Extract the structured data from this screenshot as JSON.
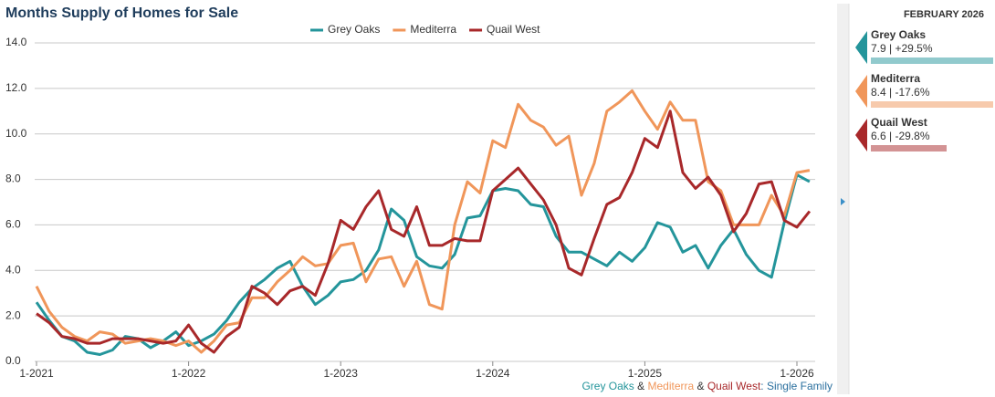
{
  "chart_data": {
    "type": "line",
    "title": "Months Supply of Homes for Sale",
    "categories": [
      "1-2021",
      null,
      null,
      null,
      null,
      null,
      null,
      null,
      null,
      null,
      null,
      null,
      "1-2022",
      null,
      null,
      null,
      null,
      null,
      null,
      null,
      null,
      null,
      null,
      null,
      "1-2023",
      null,
      null,
      null,
      null,
      null,
      null,
      null,
      null,
      null,
      null,
      null,
      "1-2024",
      null,
      null,
      null,
      null,
      null,
      null,
      null,
      null,
      null,
      null,
      null,
      "1-2025",
      null,
      null,
      null,
      null,
      null,
      null,
      null,
      null,
      null,
      null,
      null,
      "1-2026",
      null
    ],
    "series": [
      {
        "name": "Grey Oaks",
        "color": "#24959b",
        "values": [
          2.6,
          1.8,
          1.1,
          0.9,
          0.4,
          0.3,
          0.5,
          1.1,
          1.0,
          0.6,
          0.9,
          1.3,
          0.7,
          0.9,
          1.2,
          1.8,
          2.6,
          3.2,
          3.6,
          4.1,
          4.4,
          3.3,
          2.5,
          2.9,
          3.5,
          3.6,
          4.0,
          4.9,
          6.7,
          6.2,
          4.6,
          4.2,
          4.1,
          4.7,
          6.3,
          6.4,
          7.5,
          7.6,
          7.5,
          6.9,
          6.8,
          5.5,
          4.8,
          4.8,
          4.5,
          4.2,
          4.8,
          4.4,
          5.0,
          6.1,
          5.9,
          4.8,
          5.1,
          4.1,
          5.1,
          5.8,
          4.7,
          4.0,
          3.7,
          6.1,
          8.2,
          7.9
        ]
      },
      {
        "name": "Mediterra",
        "color": "#f0965a",
        "values": [
          3.3,
          2.2,
          1.5,
          1.1,
          0.9,
          1.3,
          1.2,
          0.8,
          0.9,
          1.0,
          0.9,
          0.7,
          0.9,
          0.4,
          0.9,
          1.6,
          1.7,
          2.8,
          2.8,
          3.5,
          4.0,
          4.6,
          4.2,
          4.3,
          5.1,
          5.2,
          3.5,
          4.5,
          4.6,
          3.3,
          4.4,
          2.5,
          2.3,
          6.0,
          7.9,
          7.4,
          9.7,
          9.4,
          11.3,
          10.6,
          10.3,
          9.5,
          9.9,
          7.3,
          8.7,
          11.0,
          11.4,
          11.9,
          11.0,
          10.2,
          11.4,
          10.6,
          10.6,
          7.9,
          7.5,
          6.0,
          6.0,
          6.0,
          7.3,
          6.4,
          8.3,
          8.4
        ]
      },
      {
        "name": "Quail West",
        "color": "#a8282a",
        "values": [
          2.1,
          1.7,
          1.1,
          1.0,
          0.8,
          0.8,
          1.0,
          1.0,
          1.0,
          0.9,
          0.8,
          0.9,
          1.6,
          0.8,
          0.4,
          1.1,
          1.5,
          3.3,
          3.0,
          2.5,
          3.1,
          3.3,
          2.9,
          4.3,
          6.2,
          5.8,
          6.8,
          7.5,
          5.8,
          5.5,
          6.8,
          5.1,
          5.1,
          5.4,
          5.3,
          5.3,
          7.5,
          8.0,
          8.5,
          7.8,
          7.1,
          6.0,
          4.1,
          3.8,
          5.4,
          6.9,
          7.2,
          8.3,
          9.8,
          9.4,
          11.0,
          8.3,
          7.6,
          8.1,
          7.3,
          5.7,
          6.5,
          7.8,
          7.9,
          6.2,
          5.9,
          6.6
        ]
      }
    ],
    "ylim": [
      0,
      14
    ],
    "yticks": [
      {
        "value": 0,
        "label": "0.0"
      },
      {
        "value": 2,
        "label": "2.0"
      },
      {
        "value": 4,
        "label": "4.0"
      },
      {
        "value": 6,
        "label": "6.0"
      },
      {
        "value": 8,
        "label": "8.0"
      },
      {
        "value": 10,
        "label": "10.0"
      },
      {
        "value": 12,
        "label": "12.0"
      },
      {
        "value": 14,
        "label": "14.0"
      }
    ],
    "grid": true,
    "legend": "top",
    "footnote": [
      "Grey Oaks",
      " & ",
      "Mediterra",
      " & ",
      "Quail West",
      ": Single Family"
    ]
  },
  "sidebar": {
    "heading": "FEBRUARY 2026",
    "items": [
      {
        "name": "Grey Oaks",
        "text": "7.9 | +29.5%"
      },
      {
        "name": "Mediterra",
        "text": "8.4 | -17.6%"
      },
      {
        "name": "Quail West",
        "text": "6.6 | -29.8%"
      }
    ]
  }
}
